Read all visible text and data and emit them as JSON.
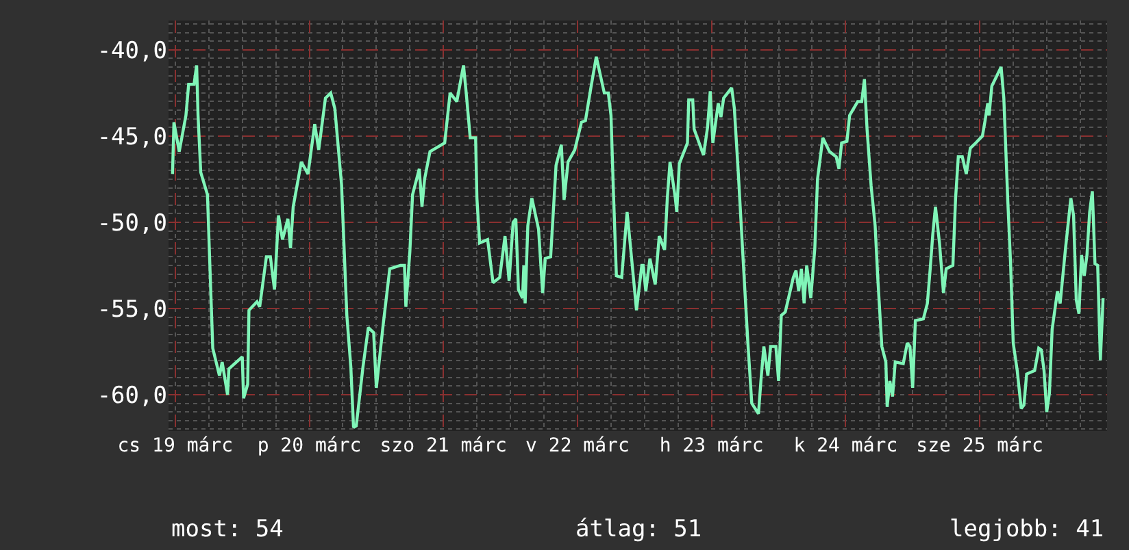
{
  "chart_data": {
    "type": "line",
    "x": [
      "--03-18T23:31",
      "--03-18T23:46",
      "--03-19T00:43",
      "--03-19T01:55",
      "--03-19T02:24",
      "--03-19T03:22",
      "--03-19T03:50",
      "--03-19T04:05",
      "--03-19T04:34",
      "--03-19T05:46",
      "--03-19T06:14",
      "--03-19T06:43",
      "--03-19T07:55",
      "--03-19T08:24",
      "--03-19T09:22",
      "--03-19T09:36",
      "--03-19T12:00",
      "--03-19T12:14",
      "--03-19T12:58",
      "--03-19T13:12",
      "--03-19T14:38",
      "--03-19T15:07",
      "--03-19T16:19",
      "--03-19T17:02",
      "--03-19T17:46",
      "--03-19T18:29",
      "--03-19T19:12",
      "--03-19T20:10",
      "--03-19T20:38",
      "--03-19T21:07",
      "--03-19T22:34",
      "--03-19T23:46",
      "--03-20T00:58",
      "--03-20T01:41",
      "--03-20T02:53",
      "--03-20T03:50",
      "--03-20T04:34",
      "--03-20T05:46",
      "--03-20T06:43",
      "--03-20T07:26",
      "--03-20T07:55",
      "--03-20T08:24",
      "--03-20T09:36",
      "--03-20T10:34",
      "--03-20T11:31",
      "--03-20T12:00",
      "--03-20T13:12",
      "--03-20T14:24",
      "--03-20T16:19",
      "--03-20T17:02",
      "--03-20T17:17",
      "--03-20T18:00",
      "--03-20T18:29",
      "--03-20T19:41",
      "--03-20T20:10",
      "--03-20T20:38",
      "--03-20T21:36",
      "--03-21T00:14",
      "--03-21T01:12",
      "--03-21T02:24",
      "--03-21T03:36",
      "--03-21T04:05",
      "--03-21T04:48",
      "--03-21T05:46",
      "--03-21T06:00",
      "--03-21T06:29",
      "--03-21T07:55",
      "--03-21T08:53",
      "--03-21T10:05",
      "--03-21T11:02",
      "--03-21T11:46",
      "--03-21T12:29",
      "--03-21T12:58",
      "--03-21T13:26",
      "--03-21T14:10",
      "--03-21T14:24",
      "--03-21T14:38",
      "--03-21T15:07",
      "--03-21T15:50",
      "--03-21T17:02",
      "--03-21T17:46",
      "--03-21T18:14",
      "--03-21T19:12",
      "--03-21T20:10",
      "--03-21T21:07",
      "--03-21T21:36",
      "--03-21T22:19",
      "--03-21T23:31",
      "--03-22T00:43",
      "--03-22T01:26",
      "--03-22T02:24",
      "--03-22T03:22",
      "--03-22T04:48",
      "--03-22T05:31",
      "--03-22T06:00",
      "--03-22T06:29",
      "--03-22T06:58",
      "--03-22T07:55",
      "--03-22T08:53",
      "--03-22T09:22",
      "--03-22T10:34",
      "--03-22T11:31",
      "--03-22T11:46",
      "--03-22T12:14",
      "--03-22T12:58",
      "--03-22T13:55",
      "--03-22T14:38",
      "--03-22T15:36",
      "--03-22T16:05",
      "--03-22T16:34",
      "--03-22T17:31",
      "--03-22T17:46",
      "--03-22T18:14",
      "--03-22T19:41",
      "--03-22T19:55",
      "--03-22T20:38",
      "--03-22T20:53",
      "--03-22T22:34",
      "--03-22T23:17",
      "--03-22T23:46",
      "--03-23T00:14",
      "--03-23T01:12",
      "--03-23T01:41",
      "--03-23T02:10",
      "--03-23T03:36",
      "--03-23T04:05",
      "--03-23T04:48",
      "--03-23T05:46",
      "--03-23T06:29",
      "--03-23T07:12",
      "--03-23T08:24",
      "--03-23T08:53",
      "--03-23T09:22",
      "--03-23T10:05",
      "--03-23T10:34",
      "--03-23T11:31",
      "--03-23T12:00",
      "--03-23T12:29",
      "--03-23T13:12",
      "--03-23T14:38",
      "--03-23T15:07",
      "--03-23T15:36",
      "--03-23T16:05",
      "--03-23T16:34",
      "--03-23T17:02",
      "--03-23T17:46",
      "--03-23T18:29",
      "--03-23T18:58",
      "--03-23T19:55",
      "--03-23T21:07",
      "--03-23T22:19",
      "--03-23T22:48",
      "--03-23T23:17",
      "--03-24T00:14",
      "--03-24T00:43",
      "--03-24T02:10",
      "--03-24T02:53",
      "--03-24T03:22",
      "--03-24T03:50",
      "--03-24T04:34",
      "--03-24T05:17",
      "--03-24T05:46",
      "--03-24T06:29",
      "--03-24T07:12",
      "--03-24T07:26",
      "--03-24T07:55",
      "--03-24T08:24",
      "--03-24T08:53",
      "--03-24T10:19",
      "--03-24T11:02",
      "--03-24T11:31",
      "--03-24T12:00",
      "--03-24T12:29",
      "--03-24T13:55",
      "--03-24T14:38",
      "--03-24T15:07",
      "--03-24T15:36",
      "--03-24T16:05",
      "--03-24T16:48",
      "--03-24T17:31",
      "--03-24T18:00",
      "--03-24T19:12",
      "--03-24T19:41",
      "--03-24T20:10",
      "--03-24T20:53",
      "--03-24T21:36",
      "--03-24T22:19",
      "--03-24T23:17",
      "--03-25T00:29",
      "--03-25T00:58",
      "--03-25T01:26",
      "--03-25T01:41",
      "--03-25T02:10",
      "--03-25T03:50",
      "--03-25T04:19",
      "--03-25T05:02",
      "--03-25T05:31",
      "--03-25T06:00",
      "--03-25T06:43",
      "--03-25T07:26",
      "--03-25T07:55",
      "--03-25T08:24",
      "--03-25T09:50",
      "--03-25T10:34",
      "--03-25T11:02",
      "--03-25T11:31",
      "--03-25T12:00",
      "--03-25T12:29",
      "--03-25T12:58",
      "--03-25T13:55",
      "--03-25T14:24",
      "--03-25T15:22",
      "--03-25T16:19",
      "--03-25T16:48",
      "--03-25T17:17",
      "--03-25T17:46",
      "--03-25T18:14",
      "--03-25T18:43",
      "--03-25T19:12",
      "--03-25T19:41",
      "--03-25T20:10",
      "--03-25T20:38",
      "--03-25T21:07",
      "--03-25T21:36",
      "--03-25T22:05"
    ],
    "series": [
      {
        "color": "#80f5b8",
        "values": [
          -47.2,
          -44.2,
          -45.9,
          -43.8,
          -42.0,
          -42.0,
          -40.9,
          -43.8,
          -47.1,
          -48.4,
          -52.8,
          -57.3,
          -58.9,
          -58.1,
          -60.0,
          -58.5,
          -57.8,
          -60.2,
          -59.4,
          -55.1,
          -54.6,
          -54.9,
          -52.0,
          -52.0,
          -53.9,
          -49.6,
          -51.0,
          -49.8,
          -51.5,
          -49.1,
          -46.5,
          -47.2,
          -44.3,
          -45.8,
          -42.8,
          -42.5,
          -43.4,
          -47.8,
          -55.4,
          -58.4,
          -61.9,
          -61.8,
          -58.4,
          -56.1,
          -56.4,
          -59.6,
          -56.0,
          -52.7,
          -52.5,
          -52.5,
          -54.9,
          -51.7,
          -48.4,
          -46.9,
          -49.1,
          -47.5,
          -45.9,
          -45.4,
          -42.5,
          -43.0,
          -40.9,
          -42.5,
          -45.1,
          -45.1,
          -48.6,
          -51.2,
          -51.0,
          -53.5,
          -53.2,
          -50.8,
          -53.4,
          -50.0,
          -49.8,
          -53.9,
          -54.4,
          -52.5,
          -54.7,
          -50.2,
          -48.6,
          -50.4,
          -54.1,
          -52.1,
          -52.0,
          -46.7,
          -45.5,
          -48.7,
          -46.5,
          -45.8,
          -44.2,
          -44.1,
          -42.2,
          -40.4,
          -42.5,
          -42.5,
          -43.8,
          -48.7,
          -53.1,
          -53.2,
          -49.4,
          -51.0,
          -55.1,
          -52.5,
          -52.5,
          -54.0,
          -52.1,
          -53.6,
          -50.8,
          -51.6,
          -48.6,
          -46.5,
          -48.6,
          -49.4,
          -46.6,
          -45.4,
          -42.9,
          -42.9,
          -44.6,
          -46.1,
          -44.5,
          -42.4,
          -45.4,
          -43.1,
          -43.9,
          -42.8,
          -42.2,
          -43.4,
          -47.2,
          -52.8,
          -56.9,
          -60.5,
          -61.1,
          -59.0,
          -57.2,
          -58.9,
          -57.2,
          -57.2,
          -59.2,
          -55.4,
          -55.2,
          -53.2,
          -52.8,
          -54.0,
          -52.7,
          -54.7,
          -52.5,
          -54.4,
          -51.5,
          -47.5,
          -45.1,
          -45.9,
          -46.2,
          -46.9,
          -45.4,
          -45.3,
          -43.8,
          -43.0,
          -43.0,
          -41.7,
          -44.6,
          -47.9,
          -50.2,
          -53.3,
          -57.2,
          -58.1,
          -60.7,
          -59.2,
          -60.1,
          -58.1,
          -58.2,
          -57.0,
          -57.2,
          -59.6,
          -55.7,
          -55.6,
          -54.7,
          -52.8,
          -50.7,
          -49.1,
          -51.2,
          -54.1,
          -52.7,
          -52.5,
          -48.6,
          -46.2,
          -46.2,
          -47.2,
          -45.7,
          -45.4,
          -45.0,
          -44.1,
          -43.1,
          -43.8,
          -42.1,
          -41.0,
          -42.8,
          -48.8,
          -52.3,
          -57.0,
          -58.6,
          -60.8,
          -60.6,
          -58.8,
          -58.6,
          -57.3,
          -57.4,
          -58.6,
          -61.0,
          -59.9,
          -56.2,
          -54.0,
          -54.7,
          -51.5,
          -48.6,
          -49.6,
          -54.5,
          -55.3,
          -51.9,
          -53.1,
          -51.9,
          -49.4,
          -48.2,
          -52.4,
          -52.5,
          -58.0,
          -54.4
        ]
      }
    ],
    "xlim": [
      "--03-18T22:48",
      "--03-25T22:48"
    ],
    "xticks": [
      {
        "value": "--03-19",
        "label": "cs 19 márc"
      },
      {
        "value": "--03-20",
        "label": "p 20 márc"
      },
      {
        "value": "--03-21",
        "label": "szo 21 márc"
      },
      {
        "value": "--03-22",
        "label": "v 22 márc"
      },
      {
        "value": "--03-23",
        "label": "h 23 márc"
      },
      {
        "value": "--03-24",
        "label": "k 24 márc"
      },
      {
        "value": "--03-25",
        "label": "sze 25 márc"
      }
    ],
    "ylim": [
      -62.1,
      -38.3
    ],
    "yticks": [
      {
        "value": -40,
        "label": "-40,0"
      },
      {
        "value": -45,
        "label": "-45,0"
      },
      {
        "value": -50,
        "label": "-50,0"
      },
      {
        "value": -55,
        "label": "-55,0"
      },
      {
        "value": -60,
        "label": "-60,0"
      }
    ],
    "grid": true,
    "marker": "none",
    "line_style": "solid",
    "annotations": [
      "most: 54",
      "átlag: 51",
      "legjobb: 41"
    ]
  }
}
